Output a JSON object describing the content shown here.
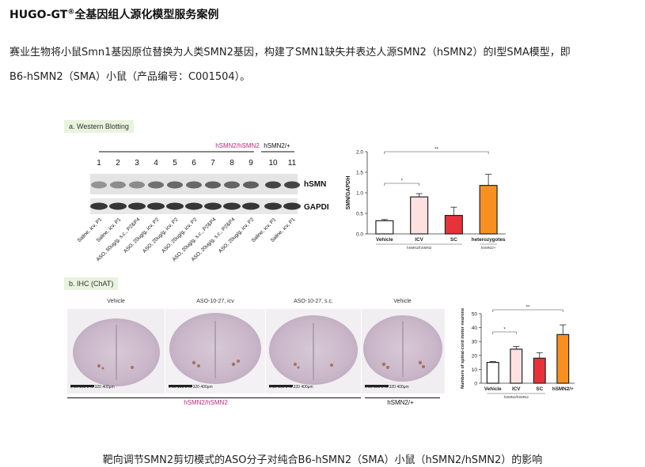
{
  "header": {
    "title_main": "HUGO-GT",
    "title_sup": "®",
    "title_rest": "全基因组人源化模型服务案例"
  },
  "intro": {
    "line1": "赛业生物将小鼠Smn1基因原位替换为人类SMN2基因，构建了SMN1缺失并表达人源SMN2（hSMN2）的Ⅰ型SMA模型，即",
    "line2": "B6-hSMN2（SMA）小鼠（产品编号：C001504）。"
  },
  "panel_a": {
    "tag": "a. Western Blotting",
    "group_left": "hSMN2/hSMN2",
    "group_right": "hSMN2/+",
    "lanes": [
      "1",
      "2",
      "3",
      "4",
      "5",
      "6",
      "7",
      "8",
      "9",
      "10",
      "11"
    ],
    "row_labels": [
      "hSMN",
      "GAPDH"
    ],
    "lane_labels": [
      "Saline, icv, P1",
      "Saline, icv, P1",
      "ASO, 50ug/g, s.c., P2&P4",
      "ASO, 20ug/g, icv, P2",
      "ASO, 20ug/g, icv, P2",
      "ASO, 20ug/g, icv, P2",
      "ASO, 20ug/g, s.c., P2&P4",
      "ASO, 20ug/g, s.c., P2&P4",
      "ASO, 20ug/g, icv, P2",
      "Saline, icv, P1",
      "Saline, icv, P1"
    ]
  },
  "panel_b": {
    "tag": "b. IHC (ChAT)",
    "images": [
      "Vehicle",
      "ASO-10-27, icv",
      "ASO-10-27, s.c.",
      "Vehicle"
    ],
    "scale_text": "0  80 160 240 320 400μm",
    "group_left": "hSMN2/hSMN2",
    "group_right": "hSMN2/+"
  },
  "chart_data": [
    {
      "type": "bar",
      "categories": [
        "Vehicle",
        "ICV",
        "SC",
        "heterozygotes"
      ],
      "values": [
        0.32,
        0.9,
        0.45,
        1.18
      ],
      "errors": [
        0.03,
        0.08,
        0.2,
        0.27
      ],
      "colors": [
        "#ffffff",
        "#fde1e1",
        "#e8323a",
        "#f7901e"
      ],
      "ylabel": "SMN/GAPDH",
      "ylim": [
        0,
        2.0
      ],
      "yticks": [
        "0.0",
        "0.5",
        "1.0",
        "1.5",
        "2.0"
      ],
      "group_labels": [
        "hSMN2/hSMN2",
        "hSMN2/+"
      ],
      "significance": [
        {
          "pair": [
            "Vehicle",
            "ICV"
          ],
          "label": "*"
        },
        {
          "pair": [
            "Vehicle",
            "heterozygotes"
          ],
          "label": "**"
        }
      ]
    },
    {
      "type": "bar",
      "categories": [
        "Vehicle",
        "ICV",
        "SC",
        "hSMN2/+"
      ],
      "values": [
        15,
        24.5,
        18,
        35
      ],
      "errors": [
        0.6,
        2,
        4,
        7
      ],
      "colors": [
        "#ffffff",
        "#fde1e1",
        "#e8323a",
        "#f7901e"
      ],
      "ylabel": "Numbers of spinal-cord motor neurons",
      "ylim": [
        0,
        50
      ],
      "yticks": [
        "0",
        "10",
        "20",
        "30",
        "40",
        "50"
      ],
      "group_labels": [
        "hSMN2/hSMN2"
      ],
      "significance": [
        {
          "pair": [
            "Vehicle",
            "ICV"
          ],
          "label": "*"
        },
        {
          "pair": [
            "Vehicle",
            "hSMN2/+"
          ],
          "label": "**"
        }
      ]
    }
  ],
  "caption": "靶向调节SMN2剪切模式的ASO分子对纯合B6-hSMN2（SMA）小鼠（hSMN2/hSMN2）的影响"
}
